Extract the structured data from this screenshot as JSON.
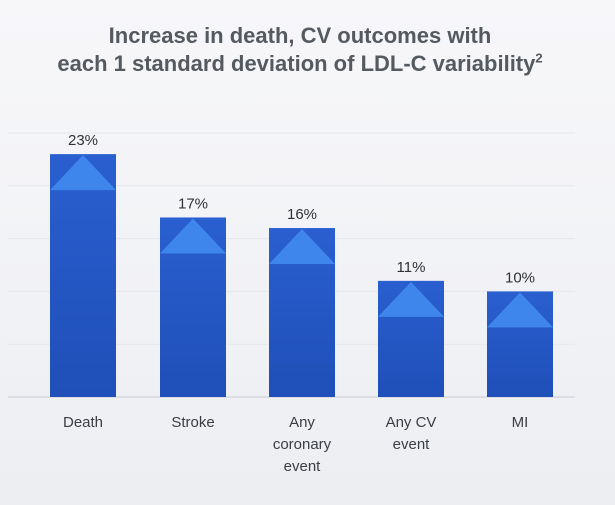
{
  "chart_data": {
    "type": "bar",
    "title_line1": "Increase in death, CV outcomes with",
    "title_line2": "each 1 standard deviation of LDL-C variability",
    "title_sup": "2",
    "categories": [
      [
        "Death"
      ],
      [
        "Stroke"
      ],
      [
        "Any",
        "coronary",
        "event"
      ],
      [
        "Any CV",
        "event"
      ],
      [
        "MI"
      ]
    ],
    "values": [
      23,
      17,
      16,
      11,
      10
    ],
    "value_labels": [
      "23%",
      "17%",
      "16%",
      "11%",
      "10%"
    ],
    "ylim": [
      0,
      25
    ],
    "grid": true,
    "xlabel": "",
    "ylabel": "",
    "colors": {
      "bar": "#2a5fd0",
      "bar_dark": "#1f4fb8",
      "arrow": "#3f86ec",
      "grid": "#e6e7eb",
      "axis": "#c9ccd2"
    }
  }
}
